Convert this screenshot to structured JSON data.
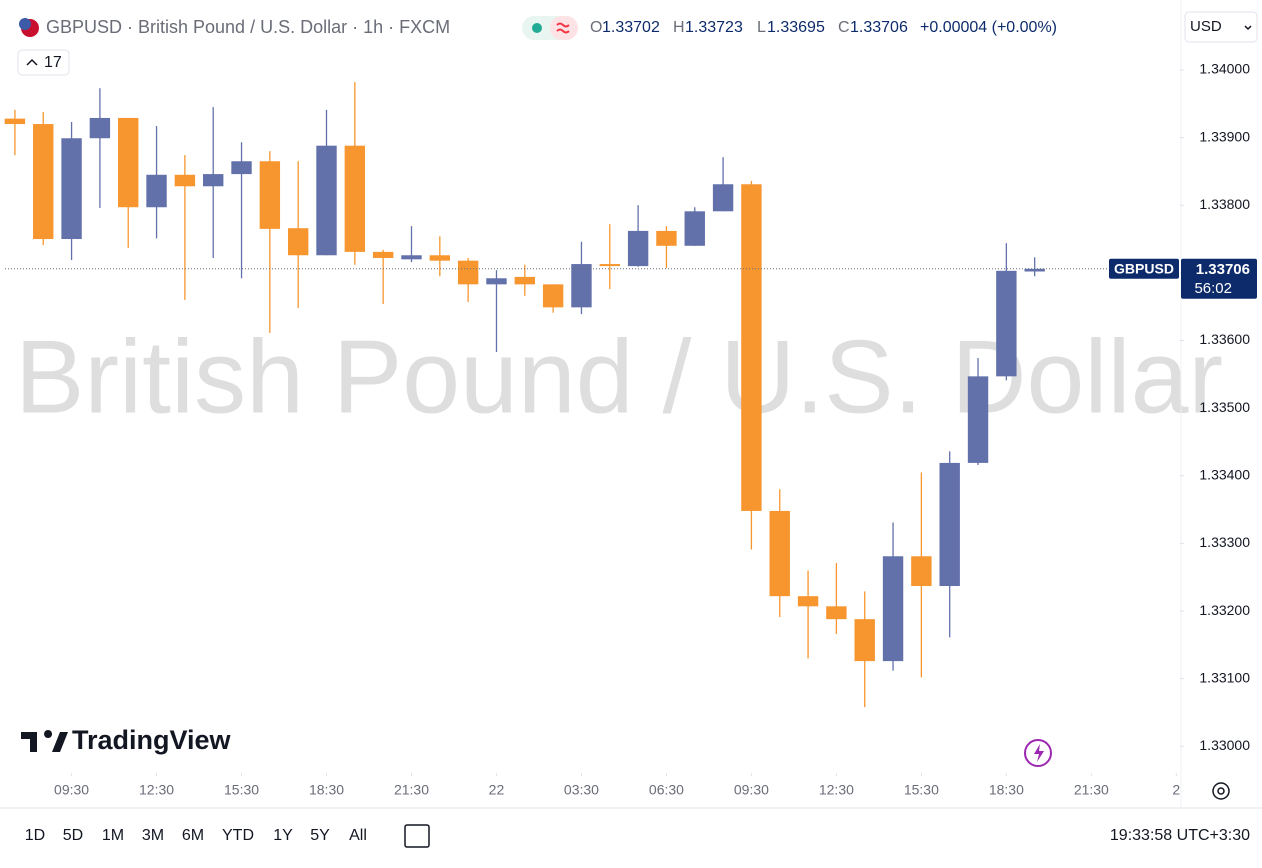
{
  "header": {
    "title": "GBPUSD · British Pound / U.S. Dollar · 1h · FXCM",
    "ohlc_labels": [
      "O",
      "H",
      "L",
      "C"
    ],
    "change": "+0.00004 (+0.00%)",
    "indicators": "17",
    "currency": "USD",
    "watermark": "British Pound / U.S. Dollar",
    "logo": "TradingView"
  },
  "price_label": {
    "symbol": "GBPUSD",
    "countdown": "56:02"
  },
  "footer": {
    "ranges": [
      "1D",
      "5D",
      "1M",
      "3M",
      "6M",
      "YTD",
      "1Y",
      "5Y",
      "All"
    ],
    "clock": "19:33:58 UTC+3:30"
  },
  "chart_data": {
    "type": "candlestick",
    "up_color": "#6371ab",
    "down_color": "#f7962f",
    "open": [
      1.33928,
      1.3392,
      1.3375,
      1.33899,
      1.33929,
      1.33797,
      1.33845,
      1.33828,
      1.33846,
      1.33865,
      1.33766,
      1.33726,
      1.33888,
      1.33731,
      1.3372,
      1.33726,
      1.33718,
      1.33683,
      1.33694,
      1.33683,
      1.33649,
      1.33713,
      1.3371,
      1.33762,
      1.3374,
      1.33791,
      1.33831,
      1.33348,
      1.33222,
      1.33207,
      1.33188,
      1.33126,
      1.33281,
      1.33237,
      1.33419,
      1.33547,
      1.33702
    ],
    "high": [
      1.33941,
      1.33938,
      1.33923,
      1.33973,
      1.33929,
      1.33917,
      1.33874,
      1.33945,
      1.33893,
      1.3388,
      1.33865,
      1.33941,
      1.33982,
      1.33734,
      1.33769,
      1.33754,
      1.33722,
      1.33704,
      1.33712,
      1.33683,
      1.33746,
      1.33772,
      1.338,
      1.33769,
      1.33797,
      1.33871,
      1.33836,
      1.3338,
      1.3326,
      1.33271,
      1.33229,
      1.33331,
      1.33405,
      1.33436,
      1.33574,
      1.33744,
      1.33723
    ],
    "low": [
      1.33874,
      1.33741,
      1.33719,
      1.33796,
      1.33737,
      1.33751,
      1.3366,
      1.33722,
      1.33692,
      1.33611,
      1.33648,
      1.33726,
      1.33712,
      1.33654,
      1.33716,
      1.33695,
      1.33657,
      1.33583,
      1.33666,
      1.33641,
      1.33639,
      1.33676,
      1.33709,
      1.33707,
      1.3374,
      1.33791,
      1.33291,
      1.33191,
      1.3313,
      1.33166,
      1.33058,
      1.33112,
      1.33102,
      1.33161,
      1.33416,
      1.33541,
      1.33695
    ],
    "close": [
      1.3392,
      1.3375,
      1.33899,
      1.33929,
      1.33797,
      1.33845,
      1.33828,
      1.33846,
      1.33865,
      1.33765,
      1.33726,
      1.33888,
      1.33731,
      1.33722,
      1.33726,
      1.33718,
      1.33683,
      1.33692,
      1.33683,
      1.33649,
      1.33713,
      1.3371,
      1.33762,
      1.3374,
      1.33791,
      1.33831,
      1.33348,
      1.33222,
      1.33207,
      1.33188,
      1.33126,
      1.33281,
      1.33237,
      1.33419,
      1.33547,
      1.33703,
      1.33706
    ],
    "xlim": [
      -0.35,
      41.13
    ],
    "xticks": [
      {
        "value": 2,
        "label": "09:30"
      },
      {
        "value": 5,
        "label": "12:30"
      },
      {
        "value": 8,
        "label": "15:30"
      },
      {
        "value": 11,
        "label": "18:30"
      },
      {
        "value": 14,
        "label": "21:30"
      },
      {
        "value": 17,
        "label": "22"
      },
      {
        "value": 20,
        "label": "03:30"
      },
      {
        "value": 23,
        "label": "06:30"
      },
      {
        "value": 26,
        "label": "09:30"
      },
      {
        "value": 29,
        "label": "12:30"
      },
      {
        "value": 32,
        "label": "15:30"
      },
      {
        "value": 35,
        "label": "18:30"
      },
      {
        "value": 38,
        "label": "21:30"
      },
      {
        "value": 41,
        "label": "2"
      }
    ],
    "ylim": [
      1.32965,
      1.34096
    ],
    "yticks": [
      {
        "value": 1.34,
        "label": "1.34000"
      },
      {
        "value": 1.339,
        "label": "1.33900"
      },
      {
        "value": 1.338,
        "label": "1.33800"
      },
      {
        "value": 1.337,
        "label": "1.33700"
      },
      {
        "value": 1.336,
        "label": "1.33600"
      },
      {
        "value": 1.335,
        "label": "1.33500"
      },
      {
        "value": 1.334,
        "label": "1.33400"
      },
      {
        "value": 1.333,
        "label": "1.33300"
      },
      {
        "value": 1.332,
        "label": "1.33200"
      },
      {
        "value": 1.331,
        "label": "1.33100"
      },
      {
        "value": 1.33,
        "label": "1.33000"
      }
    ],
    "grid": false
  }
}
